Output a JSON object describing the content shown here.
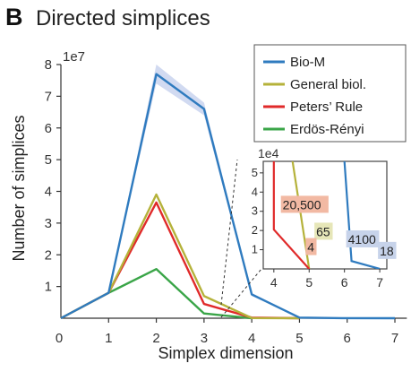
{
  "panel_label": "B",
  "chart_data": [
    {
      "type": "line",
      "title": "Directed simplices",
      "xlabel": "Simplex dimension",
      "ylabel": "Number of simplices",
      "y_multiplier": "1e7",
      "x": [
        0,
        1,
        2,
        3,
        4,
        5,
        6,
        7
      ],
      "xticks": [
        0,
        1,
        2,
        3,
        4,
        5,
        6,
        7
      ],
      "yticks": [
        1,
        2,
        3,
        4,
        5,
        6,
        7,
        8
      ],
      "xlim": [
        0,
        7.3
      ],
      "ylim": [
        0,
        8
      ],
      "legend_position": "top-right",
      "grid": false,
      "series": [
        {
          "name": "Bio-M",
          "color": "#2f7bbf",
          "band_color": "#c9d3ee",
          "values": [
            0,
            0.8,
            7.7,
            6.6,
            0.75,
            0.02,
            0.0004,
            2e-05
          ],
          "band": [
            0,
            0,
            0.3,
            0.2,
            0.05,
            0,
            0,
            0
          ]
        },
        {
          "name": "General biol.",
          "color": "#b5b23a",
          "values": [
            0,
            0.8,
            3.9,
            0.7,
            0.0065,
            0,
            null,
            null
          ]
        },
        {
          "name": "Peters’ Rule",
          "color": "#e02a2a",
          "values": [
            0,
            0.8,
            3.65,
            0.45,
            0.02,
            0,
            null,
            null
          ]
        },
        {
          "name": "Erdös-Rényi",
          "color": "#3aa548",
          "values": [
            0,
            0.8,
            1.55,
            0.15,
            0,
            null,
            null,
            null
          ]
        }
      ]
    },
    {
      "type": "line",
      "role": "inset",
      "y_multiplier": "1e4",
      "xticks": [
        4,
        5,
        6,
        7
      ],
      "yticks": [
        1,
        2,
        3,
        4,
        5
      ],
      "xlim": [
        3.7,
        7.2
      ],
      "ylim": [
        0,
        5.6
      ],
      "series": [
        {
          "name": "Bio-M",
          "color": "#2f7bbf",
          "x": [
            6,
            6.2,
            7
          ],
          "values": [
            5.6,
            0.41,
            0.0018
          ]
        },
        {
          "name": "General biol.",
          "color": "#b5b23a",
          "x": [
            4.53,
            5
          ],
          "values": [
            5.6,
            0
          ]
        },
        {
          "name": "Peters’ Rule",
          "color": "#e02a2a",
          "x": [
            4,
            4,
            5
          ],
          "values": [
            5.6,
            2.05,
            0
          ]
        }
      ],
      "annotations": [
        {
          "text": "20,500",
          "x": 4.25,
          "y": 3.2,
          "bg": "#f2b9a3"
        },
        {
          "text": "65",
          "x": 5.2,
          "y": 1.8,
          "bg": "#e6e6b8"
        },
        {
          "text": "4",
          "x": 4.95,
          "y": 1.0,
          "bg": "#f2b9a3"
        },
        {
          "text": "4100",
          "x": 6.1,
          "y": 1.4,
          "bg": "#c7d3ea"
        },
        {
          "text": "18",
          "x": 7.0,
          "y": 0.8,
          "bg": "#c7d3ea"
        }
      ]
    }
  ]
}
